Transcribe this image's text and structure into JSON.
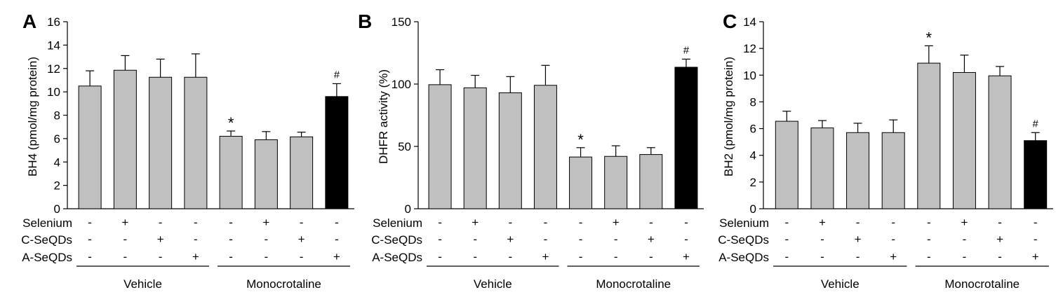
{
  "colors": {
    "vehicle_bar": "#c0c0c0",
    "highlight_bar": "#000000",
    "axis": "#000000"
  },
  "chart_data": [
    {
      "type": "bar",
      "panel_label": "A",
      "ylabel": "BH4 (pmol/mg protein)",
      "ylim": [
        0,
        16
      ],
      "yticks": [
        "0",
        "2",
        "4",
        "6",
        "8",
        "10",
        "12",
        "14",
        "16"
      ],
      "values": [
        10.5,
        11.85,
        11.25,
        11.25,
        6.2,
        5.9,
        6.15,
        9.6
      ],
      "errors": [
        1.3,
        1.25,
        1.55,
        2.0,
        0.45,
        0.7,
        0.4,
        1.1
      ],
      "annotations": [
        "",
        "",
        "",
        "",
        "*",
        "",
        "",
        "#"
      ],
      "rows": [
        {
          "label": "Selenium",
          "signs": [
            "-",
            "+",
            "-",
            "-",
            "-",
            "+",
            "-",
            "-"
          ]
        },
        {
          "label": "C-SeQDs",
          "signs": [
            "-",
            "-",
            "+",
            "-",
            "-",
            "-",
            "+",
            "-"
          ]
        },
        {
          "label": "A-SeQDs",
          "signs": [
            "-",
            "-",
            "-",
            "+",
            "-",
            "-",
            "-",
            "+"
          ]
        }
      ],
      "groups": [
        "Vehicle",
        "Monocrotaline"
      ]
    },
    {
      "type": "bar",
      "panel_label": "B",
      "ylabel": "DHFR activity (%)",
      "ylim": [
        0,
        150
      ],
      "yticks": [
        "0",
        "50",
        "100",
        "150"
      ],
      "values": [
        99.5,
        97.0,
        93.0,
        99.0,
        41.5,
        42.0,
        43.5,
        113.5
      ],
      "errors": [
        12.0,
        10.0,
        13.0,
        16.0,
        7.5,
        8.5,
        5.5,
        6.5
      ],
      "annotations": [
        "",
        "",
        "",
        "",
        "*",
        "",
        "",
        "#"
      ],
      "rows": [
        {
          "label": "Selenium",
          "signs": [
            "-",
            "+",
            "-",
            "-",
            "-",
            "+",
            "-",
            "-"
          ]
        },
        {
          "label": "C-SeQDs",
          "signs": [
            "-",
            "-",
            "+",
            "-",
            "-",
            "-",
            "+",
            "-"
          ]
        },
        {
          "label": "A-SeQDs",
          "signs": [
            "-",
            "-",
            "-",
            "+",
            "-",
            "-",
            "-",
            "+"
          ]
        }
      ],
      "groups": [
        "Vehicle",
        "Monocrotaline"
      ]
    },
    {
      "type": "bar",
      "panel_label": "C",
      "ylabel": "BH2 (pmol/mg protein)",
      "ylim": [
        0,
        14
      ],
      "yticks": [
        "0",
        "2",
        "4",
        "6",
        "8",
        "10",
        "12",
        "14"
      ],
      "values": [
        6.55,
        6.05,
        5.7,
        5.7,
        10.9,
        10.2,
        9.95,
        5.1
      ],
      "errors": [
        0.75,
        0.55,
        0.7,
        0.95,
        1.3,
        1.3,
        0.7,
        0.6
      ],
      "annotations": [
        "",
        "",
        "",
        "",
        "*",
        "",
        "",
        "#"
      ],
      "rows": [
        {
          "label": "Selenium",
          "signs": [
            "-",
            "+",
            "-",
            "-",
            "-",
            "+",
            "-",
            "-"
          ]
        },
        {
          "label": "C-SeQDs",
          "signs": [
            "-",
            "-",
            "+",
            "-",
            "-",
            "-",
            "+",
            "-"
          ]
        },
        {
          "label": "A-SeQDs",
          "signs": [
            "-",
            "-",
            "-",
            "+",
            "-",
            "-",
            "-",
            "+"
          ]
        }
      ],
      "groups": [
        "Vehicle",
        "Monocrotaline"
      ]
    }
  ]
}
